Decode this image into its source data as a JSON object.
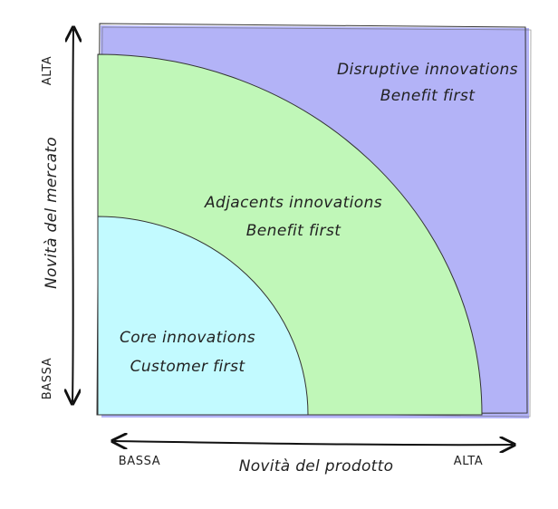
{
  "colors": {
    "disruptive": "#b3b3f7",
    "adjacent": "#c0f7b8",
    "core": "#c2faff",
    "stroke": "#333333",
    "axis": "#111111"
  },
  "regions": {
    "disruptive": {
      "line1": "Disruptive innovations",
      "line2": "Benefit first"
    },
    "adjacent": {
      "line1": "Adjacents innovations",
      "line2": "Benefit first"
    },
    "core": {
      "line1": "Core innovations",
      "line2": "Customer first"
    }
  },
  "y_axis": {
    "title": "Novità del mercato",
    "high": "ALTA",
    "low": "BASSA"
  },
  "x_axis": {
    "title": "Novità del prodotto",
    "low": "BASSA",
    "high": "ALTA"
  }
}
